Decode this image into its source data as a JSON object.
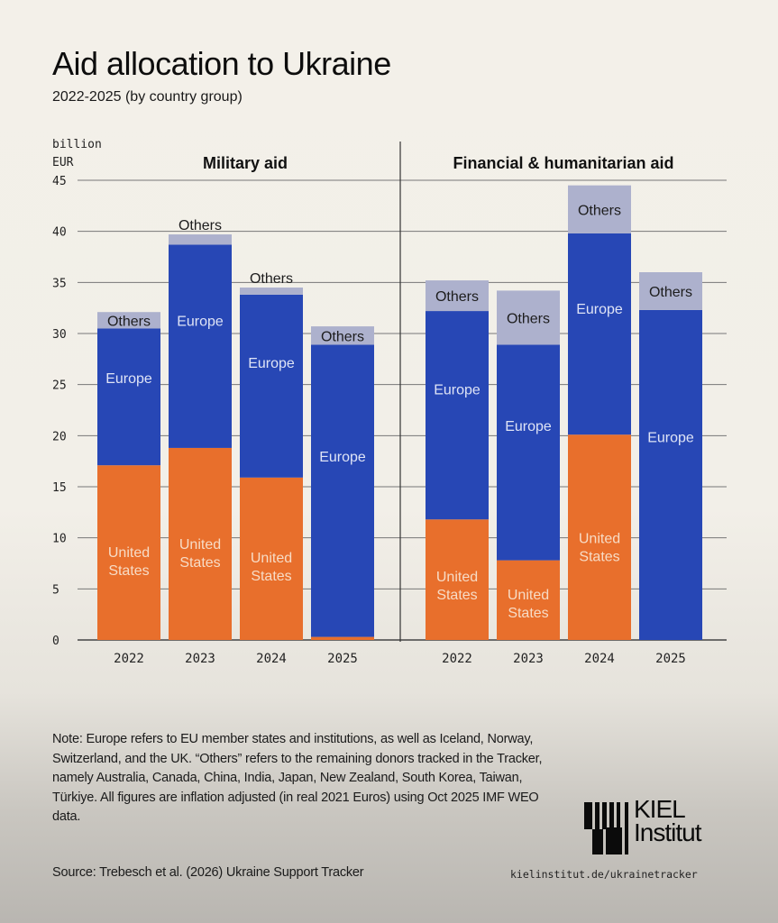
{
  "header": {
    "title": "Aid allocation to Ukraine",
    "subtitle": "2022-2025 (by country group)"
  },
  "chart_data": {
    "type": "bar",
    "stacked": true,
    "title": "Aid allocation to Ukraine",
    "subtitle": "2022-2025 (by country group)",
    "ylabel": "billion EUR",
    "ylabel_lines": [
      "billion",
      "EUR"
    ],
    "ylim": [
      0,
      45
    ],
    "yticks": [
      0,
      5,
      10,
      15,
      20,
      25,
      30,
      35,
      40,
      45
    ],
    "grid": true,
    "colors": {
      "United States": "#e86f2c",
      "Europe": "#2747b5",
      "Others": "#adb1cd"
    },
    "panels": [
      {
        "title": "Military aid",
        "categories": [
          "2022",
          "2023",
          "2024",
          "2025"
        ],
        "series": [
          {
            "name": "United States",
            "values": [
              17.1,
              18.8,
              15.9,
              0.3
            ]
          },
          {
            "name": "Europe",
            "values": [
              13.4,
              19.9,
              17.9,
              28.6
            ]
          },
          {
            "name": "Others",
            "values": [
              1.6,
              1.0,
              0.7,
              1.8
            ]
          }
        ],
        "labels": {
          "United States": [
            "United\nStates",
            "United\nStates",
            "United\nStates",
            ""
          ],
          "Europe": [
            "Europe",
            "Europe",
            "Europe",
            "Europe"
          ],
          "Others": [
            "Others",
            "Others",
            "Others",
            "Others"
          ]
        }
      },
      {
        "title": "Financial & humanitarian aid",
        "categories": [
          "2022",
          "2023",
          "2024",
          "2025"
        ],
        "series": [
          {
            "name": "United States",
            "values": [
              11.8,
              7.8,
              20.1,
              0.0
            ]
          },
          {
            "name": "Europe",
            "values": [
              20.4,
              21.1,
              19.7,
              32.3
            ]
          },
          {
            "name": "Others",
            "values": [
              3.0,
              5.3,
              4.7,
              3.7
            ]
          }
        ],
        "labels": {
          "United States": [
            "United\nStates",
            "United\nStates",
            "United\nStates",
            ""
          ],
          "Europe": [
            "Europe",
            "Europe",
            "Europe",
            "Europe"
          ],
          "Others": [
            "Others",
            "Others",
            "Others",
            "Others"
          ]
        }
      }
    ]
  },
  "footer": {
    "note": "Note: Europe refers to EU member states and institutions, as well as Iceland, Norway, Switzerland, and the UK. “Others” refers to the remaining donors tracked in the Tracker, namely Australia, Canada, China, India, Japan, New Zealand, South Korea, Taiwan, Türkiye. All figures are inflation adjusted (in real 2021 Euros) using Oct 2025 IMF WEO data.",
    "source": "Source: Trebesch et al. (2026) Ukraine Support Tracker",
    "url": "kielinstitut.de/ukrainetracker",
    "logo_line1": "KIEL",
    "logo_line2": "Institut"
  }
}
